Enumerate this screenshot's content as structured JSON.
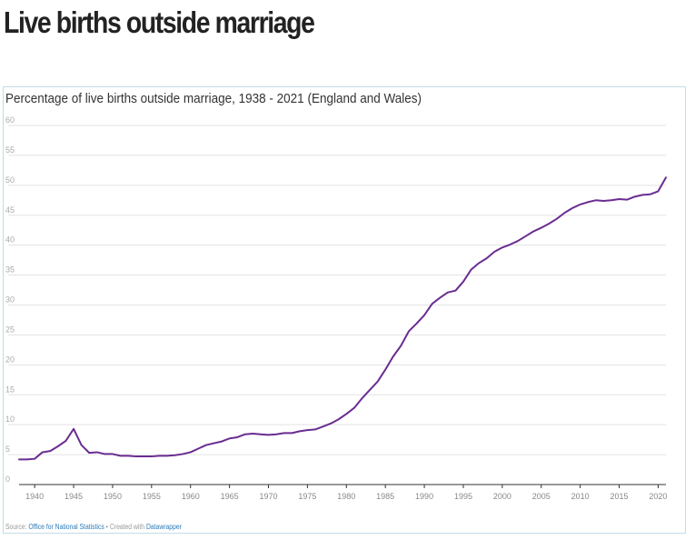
{
  "page": {
    "title": "Live births outside marriage"
  },
  "chart": {
    "source_prefix": "Source: ",
    "source_name": "Office for National Statistics",
    "created_with_prefix": " • Created with ",
    "created_with": "Datawrapper"
  },
  "colors": {
    "line": "#6a2c91",
    "grid": "#e3e3e3",
    "tick_text": "#aaaaaa",
    "axis": "#333333"
  },
  "chart_data": {
    "type": "line",
    "title": "Percentage of live births outside marriage, 1938 - 2021 (England and Wales)",
    "xlabel": "",
    "ylabel": "",
    "xlim": [
      1938,
      2021
    ],
    "ylim": [
      0,
      60
    ],
    "grid": true,
    "y_ticks": [
      0,
      5,
      10,
      15,
      20,
      25,
      30,
      35,
      40,
      45,
      50,
      55,
      60
    ],
    "x_ticks": [
      1940,
      1945,
      1950,
      1955,
      1960,
      1965,
      1970,
      1975,
      1980,
      1985,
      1990,
      1995,
      2000,
      2005,
      2010,
      2015,
      2020
    ],
    "series": [
      {
        "name": "",
        "x": [
          1938,
          1939,
          1940,
          1941,
          1942,
          1943,
          1944,
          1945,
          1946,
          1947,
          1948,
          1949,
          1950,
          1951,
          1952,
          1953,
          1954,
          1955,
          1956,
          1957,
          1958,
          1959,
          1960,
          1961,
          1962,
          1963,
          1964,
          1965,
          1966,
          1967,
          1968,
          1969,
          1970,
          1971,
          1972,
          1973,
          1974,
          1975,
          1976,
          1977,
          1978,
          1979,
          1980,
          1981,
          1982,
          1983,
          1984,
          1985,
          1986,
          1987,
          1988,
          1989,
          1990,
          1991,
          1992,
          1993,
          1994,
          1995,
          1996,
          1997,
          1998,
          1999,
          2000,
          2001,
          2002,
          2003,
          2004,
          2005,
          2006,
          2007,
          2008,
          2009,
          2010,
          2011,
          2012,
          2013,
          2014,
          2015,
          2016,
          2017,
          2018,
          2019,
          2020,
          2021
        ],
        "values": [
          4.2,
          4.2,
          4.3,
          5.4,
          5.6,
          6.4,
          7.3,
          9.3,
          6.6,
          5.3,
          5.4,
          5.1,
          5.1,
          4.8,
          4.8,
          4.7,
          4.7,
          4.7,
          4.8,
          4.8,
          4.9,
          5.1,
          5.4,
          6.0,
          6.6,
          6.9,
          7.2,
          7.7,
          7.9,
          8.4,
          8.5,
          8.4,
          8.3,
          8.4,
          8.6,
          8.6,
          8.9,
          9.1,
          9.2,
          9.7,
          10.2,
          10.9,
          11.8,
          12.8,
          14.4,
          15.8,
          17.2,
          19.2,
          21.4,
          23.2,
          25.6,
          26.9,
          28.3,
          30.2,
          31.2,
          32.1,
          32.4,
          33.9,
          35.9,
          37.0,
          37.8,
          38.9,
          39.6,
          40.1,
          40.7,
          41.5,
          42.3,
          42.9,
          43.6,
          44.4,
          45.4,
          46.2,
          46.8,
          47.2,
          47.5,
          47.4,
          47.5,
          47.7,
          47.6,
          48.1,
          48.4,
          48.5,
          49.0,
          51.3
        ]
      }
    ]
  }
}
